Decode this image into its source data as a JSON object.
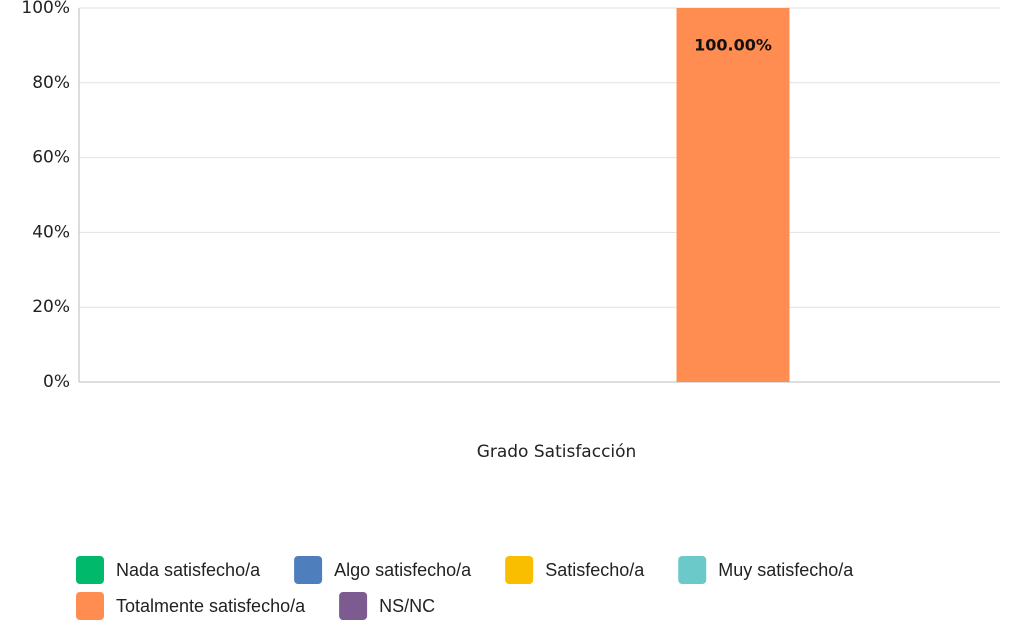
{
  "chart_data": {
    "type": "bar",
    "categories": [
      "Grado Satisfacción"
    ],
    "series": [
      {
        "name": "Nada satisfecho/a",
        "color": "#00b96b",
        "values": [
          0
        ]
      },
      {
        "name": "Algo satisfecho/a",
        "color": "#4f7ebd",
        "values": [
          0
        ]
      },
      {
        "name": "Satisfecho/a",
        "color": "#fabe00",
        "values": [
          0
        ]
      },
      {
        "name": "Muy satisfecho/a",
        "color": "#6bc9c9",
        "values": [
          0
        ]
      },
      {
        "name": "Totalmente satisfecho/a",
        "color": "#ff8c50",
        "values": [
          100
        ],
        "value_labels": [
          "100.00%"
        ]
      },
      {
        "name": "NS/NC",
        "color": "#7c5b91",
        "values": [
          0
        ]
      }
    ],
    "ylim": [
      0,
      100
    ],
    "yticks": [
      {
        "value": 0,
        "label": "0%"
      },
      {
        "value": 20,
        "label": "20%"
      },
      {
        "value": 40,
        "label": "40%"
      },
      {
        "value": 60,
        "label": "60%"
      },
      {
        "value": 80,
        "label": "80%"
      },
      {
        "value": 100,
        "label": "100%"
      }
    ],
    "grid": true
  }
}
